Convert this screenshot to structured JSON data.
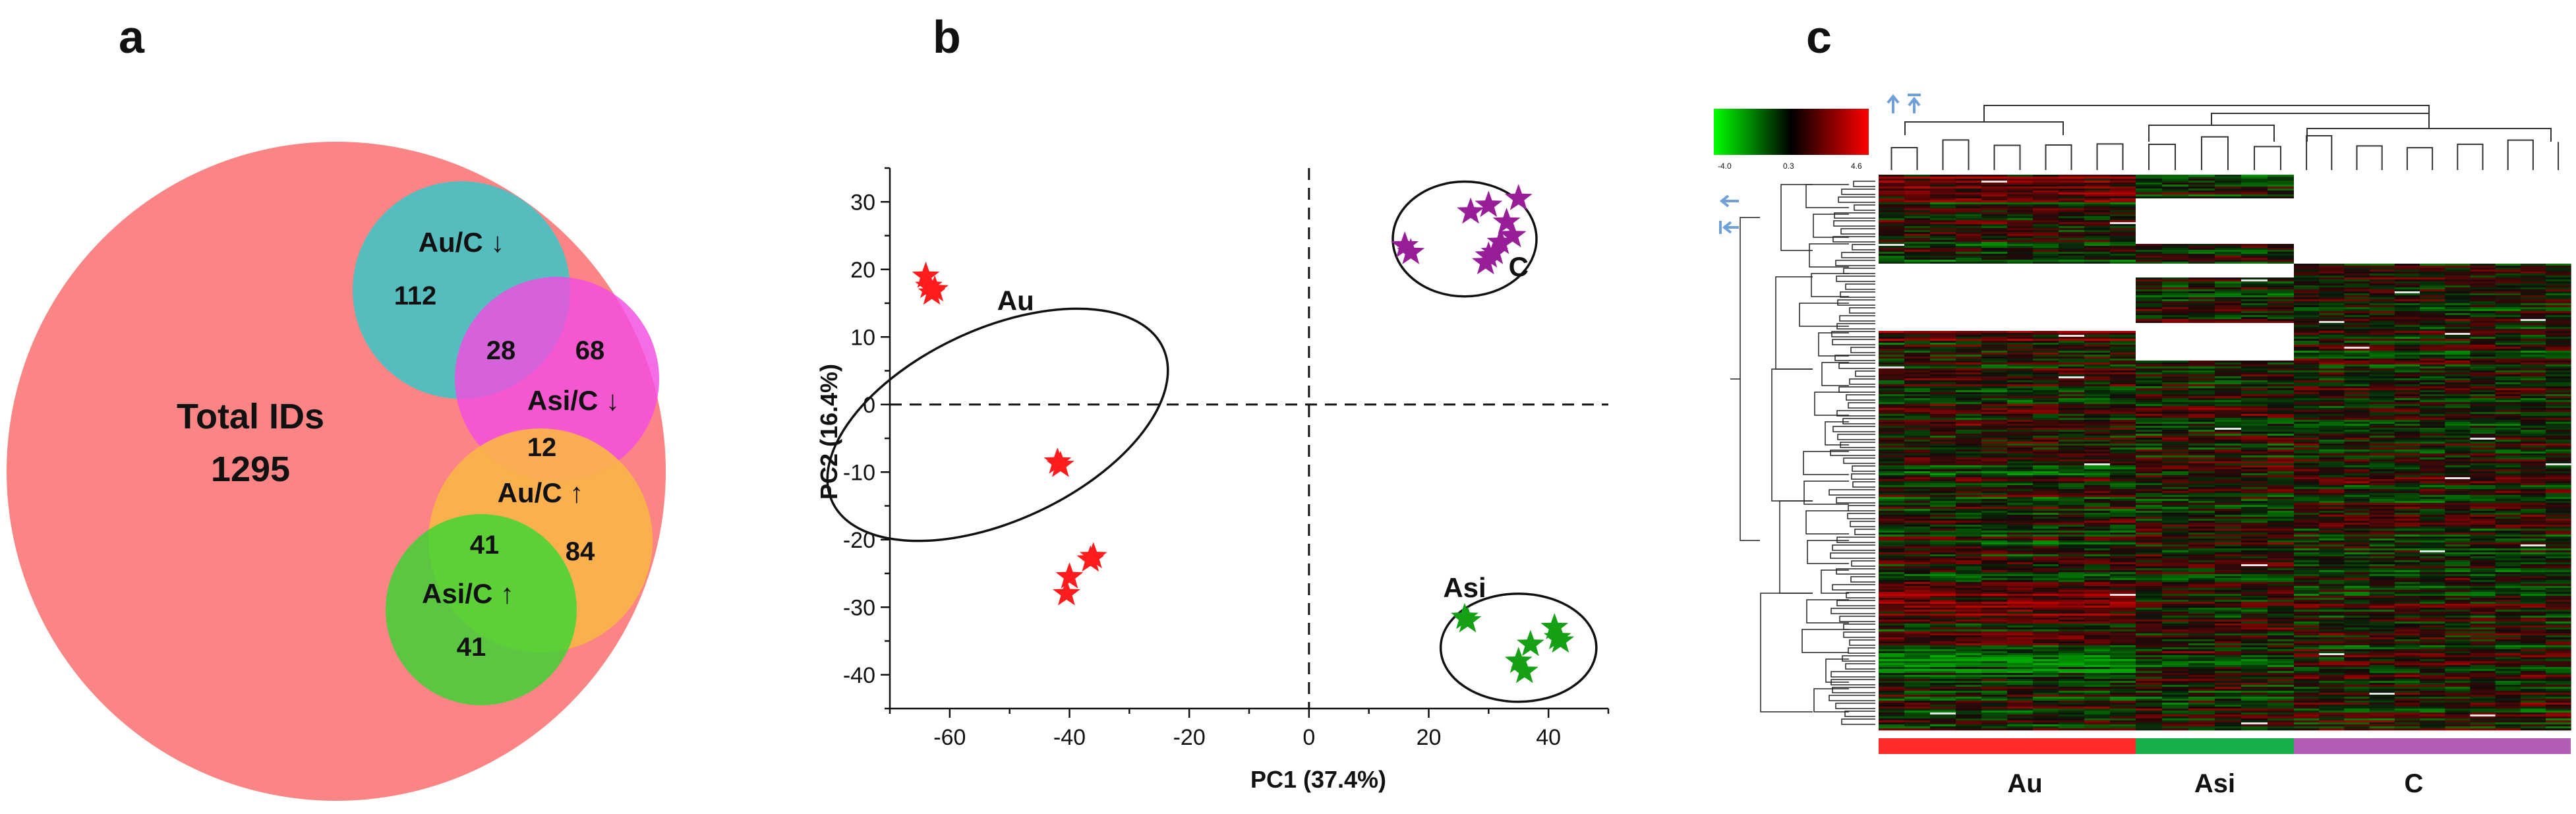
{
  "chart_data": [
    {
      "type": "venn",
      "panel_label": "a",
      "total": {
        "label": "Total IDs",
        "value": "1295"
      },
      "circles": [
        {
          "name": "Au/C down",
          "label": "Au/C ↓",
          "color": "#48c2c4"
        },
        {
          "name": "Asi/C down",
          "label": "Asi/C ↓",
          "color": "#f24de0"
        },
        {
          "name": "Au/C up",
          "label": "Au/C ↑",
          "color": "#fbb44a"
        },
        {
          "name": "Asi/C up",
          "label": "Asi/C ↑",
          "color": "#2fd92f"
        }
      ],
      "regions": [
        {
          "name": "Au/C down only",
          "value": "112"
        },
        {
          "name": "Au/C down and Asi/C down",
          "value": "28"
        },
        {
          "name": "Asi/C down only",
          "value": "68"
        },
        {
          "name": "Asi/C down and Au/C up",
          "value": "12"
        },
        {
          "name": "Au/C up only",
          "value": "84"
        },
        {
          "name": "Au/C up and Asi/C up",
          "value": "41"
        },
        {
          "name": "Asi/C up only",
          "value": "41"
        }
      ],
      "total_color": "#fb8585"
    },
    {
      "type": "scatter",
      "panel_label": "b",
      "xlabel": "PC1 (37.4%)",
      "ylabel": "PC2 (16.4%)",
      "xlim": [
        -70,
        50
      ],
      "ylim": [
        -45,
        35
      ],
      "xticks": [
        -60,
        -40,
        -20,
        0,
        20,
        40
      ],
      "yticks": [
        30,
        20,
        10,
        0,
        -10,
        -20,
        -30,
        -40
      ],
      "series": [
        {
          "name": "Au",
          "color": "#ff1c1c",
          "points": [
            [
              -64,
              19
            ],
            [
              -63.5,
              17.5
            ],
            [
              -63,
              16.5
            ],
            [
              -62.5,
              17
            ],
            [
              -42,
              -8.5
            ],
            [
              -41.5,
              -9
            ],
            [
              -40,
              -25.5
            ],
            [
              -40.5,
              -28
            ],
            [
              -36.5,
              -23
            ],
            [
              -36,
              -22.5
            ]
          ],
          "ellipse": {
            "cx": -52,
            "cy": -3,
            "rx": 16,
            "ry": 27,
            "angle_deg": 65
          }
        },
        {
          "name": "Asi",
          "color": "#15a015",
          "points": [
            [
              26,
              -31.5
            ],
            [
              26.5,
              -32
            ],
            [
              35,
              -38
            ],
            [
              36,
              -39.5
            ],
            [
              37,
              -35.5
            ],
            [
              41,
              -33
            ],
            [
              42,
              -35
            ],
            [
              41.5,
              -34.5
            ]
          ],
          "ellipse": {
            "cx": 35,
            "cy": -36,
            "rx": 13,
            "ry": 8,
            "angle_deg": 0
          }
        },
        {
          "name": "C",
          "color": "#991d99",
          "points": [
            [
              16,
              23.5
            ],
            [
              17,
              22.5
            ],
            [
              27,
              28.5
            ],
            [
              30,
              29.5
            ],
            [
              30,
              22
            ],
            [
              29.5,
              21
            ],
            [
              32,
              24
            ],
            [
              33,
              27
            ],
            [
              34,
              25
            ],
            [
              35,
              30.5
            ],
            [
              31,
              22.5
            ]
          ],
          "ellipse": {
            "cx": 26,
            "cy": 24.5,
            "rx": 12,
            "ry": 8.5,
            "angle_deg": 0
          }
        }
      ]
    },
    {
      "type": "heatmap",
      "panel_label": "c",
      "color_scale": {
        "min": "-4.0",
        "mid": "0.3",
        "max": "4.6",
        "low_color": "#00ff00",
        "mid_color": "#000000",
        "high_color": "#ff0000"
      },
      "groups": [
        {
          "name": "Au",
          "color": "#ff2a2a"
        },
        {
          "name": "Asi",
          "color": "#19b04a"
        },
        {
          "name": "C",
          "color": "#b45cb4"
        }
      ],
      "group_colors": [
        "#ff2a2a",
        "#19b04a",
        "#b45cb4"
      ]
    }
  ]
}
